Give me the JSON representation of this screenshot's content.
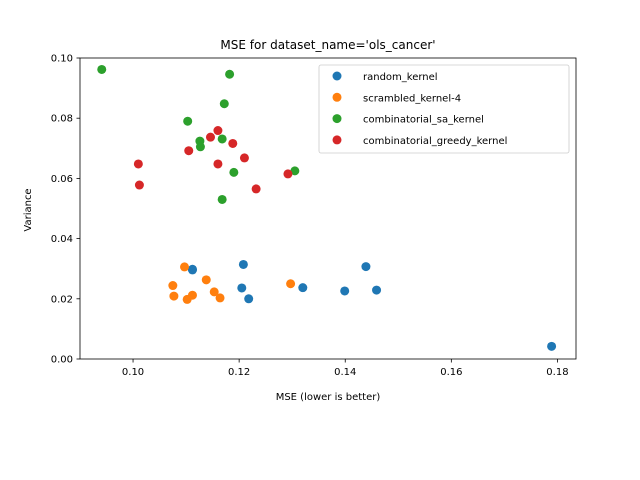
{
  "chart_data": {
    "type": "scatter",
    "title": "MSE for dataset_name='ols_cancer'",
    "xlabel": "MSE (lower is better)",
    "ylabel": "Variance",
    "xlim": [
      0.09,
      0.1835
    ],
    "ylim": [
      0.0,
      0.1
    ],
    "xticks": [
      "0.10",
      "0.12",
      "0.14",
      "0.16",
      "0.18"
    ],
    "xtick_values": [
      0.1,
      0.12,
      0.14,
      0.16,
      0.18
    ],
    "yticks": [
      "0.00",
      "0.02",
      "0.04",
      "0.06",
      "0.08",
      "0.10"
    ],
    "ytick_values": [
      0.0,
      0.02,
      0.04,
      0.06,
      0.08,
      0.1
    ],
    "grid": false,
    "legend_position": "top-right",
    "series": [
      {
        "name": "random_kernel",
        "color": "#1f77b4",
        "points": [
          [
            0.1112,
            0.0296
          ],
          [
            0.1112,
            0.0298
          ],
          [
            0.1208,
            0.0314
          ],
          [
            0.1205,
            0.0236
          ],
          [
            0.1218,
            0.02
          ],
          [
            0.132,
            0.0237
          ],
          [
            0.1399,
            0.0226
          ],
          [
            0.1439,
            0.0307
          ],
          [
            0.1459,
            0.0229
          ],
          [
            0.1789,
            0.0042
          ]
        ]
      },
      {
        "name": "scrambled_kernel-4",
        "color": "#ff7f0e",
        "points": [
          [
            0.1075,
            0.0244
          ],
          [
            0.1077,
            0.0209
          ],
          [
            0.1097,
            0.0306
          ],
          [
            0.1102,
            0.0198
          ],
          [
            0.1112,
            0.0212
          ],
          [
            0.1138,
            0.0263
          ],
          [
            0.1153,
            0.0223
          ],
          [
            0.1164,
            0.0203
          ],
          [
            0.1297,
            0.025
          ]
        ]
      },
      {
        "name": "combinatorial_sa_kernel",
        "color": "#2ca02c",
        "points": [
          [
            0.0941,
            0.0962
          ],
          [
            0.1103,
            0.079
          ],
          [
            0.1126,
            0.0724
          ],
          [
            0.1127,
            0.0705
          ],
          [
            0.1168,
            0.053
          ],
          [
            0.1168,
            0.0731
          ],
          [
            0.1172,
            0.0848
          ],
          [
            0.1182,
            0.0946
          ],
          [
            0.119,
            0.062
          ],
          [
            0.1305,
            0.0625
          ]
        ]
      },
      {
        "name": "combinatorial_greedy_kernel",
        "color": "#d62728",
        "points": [
          [
            0.101,
            0.0648
          ],
          [
            0.1012,
            0.0578
          ],
          [
            0.1105,
            0.0692
          ],
          [
            0.1146,
            0.0737
          ],
          [
            0.116,
            0.0759
          ],
          [
            0.116,
            0.0648
          ],
          [
            0.1188,
            0.0716
          ],
          [
            0.121,
            0.0668
          ],
          [
            0.1232,
            0.0565
          ],
          [
            0.1292,
            0.0615
          ]
        ]
      }
    ]
  }
}
